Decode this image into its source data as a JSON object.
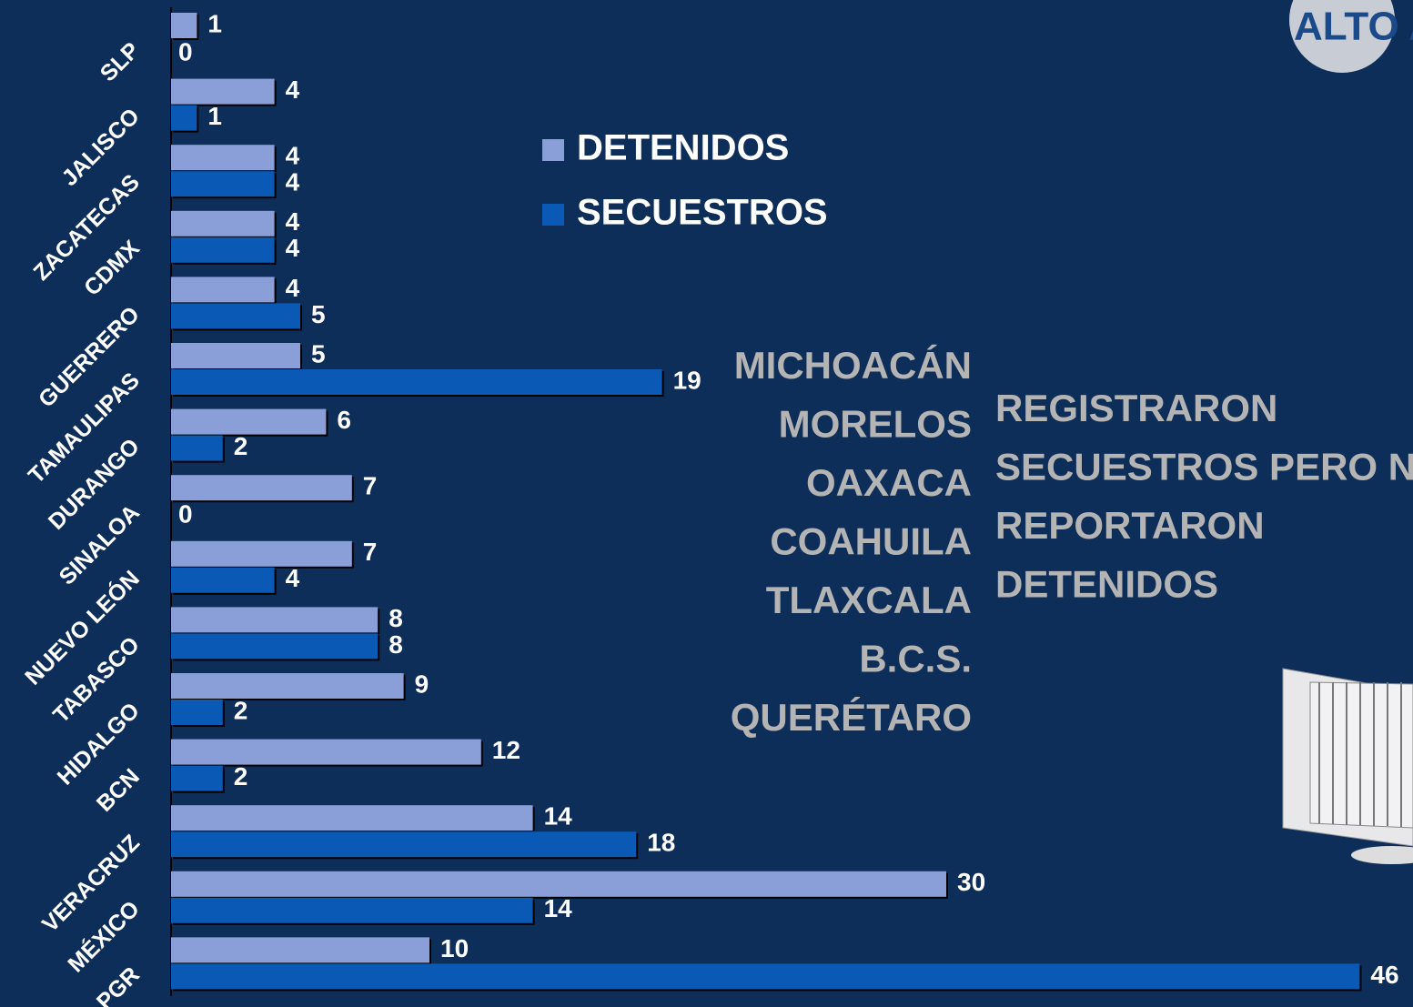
{
  "chart_data": {
    "type": "bar",
    "orientation": "horizontal",
    "categories": [
      "SLP",
      "JALISCO",
      "ZACATECAS",
      "CDMX",
      "GUERRERO",
      "TAMAULIPAS",
      "DURANGO",
      "SINALOA",
      "NUEVO LEÓN",
      "TABASCO",
      "HIDALGO",
      "BCN",
      "VERACRUZ",
      "MÉXICO",
      "PGR"
    ],
    "series": [
      {
        "name": "DETENIDOS",
        "color": "#8a9fd8",
        "values": [
          1,
          4,
          4,
          4,
          4,
          5,
          6,
          7,
          7,
          8,
          9,
          12,
          14,
          30,
          10
        ]
      },
      {
        "name": "SECUESTROS",
        "color": "#0a5ab5",
        "values": [
          0,
          1,
          4,
          4,
          5,
          19,
          2,
          0,
          4,
          8,
          2,
          2,
          18,
          14,
          46
        ]
      }
    ],
    "annotation_states": [
      "MICHOACÁN",
      "MORELOS",
      "OAXACA",
      "COAHUILA",
      "TLAXCALA",
      "B.C.S.",
      "QUERÉTARO"
    ],
    "annotation_text": [
      "REGISTRARON",
      "SECUESTROS PERO NO",
      "REPORTARON",
      "DETENIDOS"
    ],
    "logo": "ALTO A"
  }
}
